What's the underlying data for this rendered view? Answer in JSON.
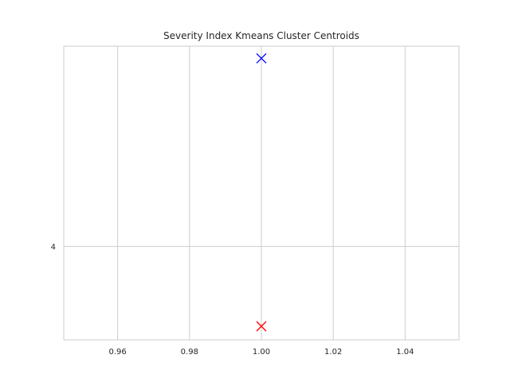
{
  "chart_data": {
    "type": "scatter",
    "title": "Severity Index Kmeans Cluster Centroids",
    "xlabel": "",
    "ylabel": "",
    "xlim": [
      0.945,
      1.055
    ],
    "ylim": [
      3.31,
      5.48
    ],
    "x_ticks": [
      {
        "value": 0.96,
        "label": "0.96"
      },
      {
        "value": 0.98,
        "label": "0.98"
      },
      {
        "value": 1.0,
        "label": "1.00"
      },
      {
        "value": 1.02,
        "label": "1.02"
      },
      {
        "value": 1.04,
        "label": "1.04"
      }
    ],
    "y_ticks": [
      {
        "value": 4,
        "label": "4"
      }
    ],
    "grid": true,
    "marker": "x",
    "points": [
      {
        "x": 1.0,
        "y": 5.39,
        "color": "#0000ff"
      },
      {
        "x": 1.0,
        "y": 3.41,
        "color": "#ff0000"
      }
    ]
  },
  "colors": {
    "background": "#ffffff",
    "grid": "#cccccc",
    "axes_edge": "#cccccc",
    "text": "#262626"
  }
}
